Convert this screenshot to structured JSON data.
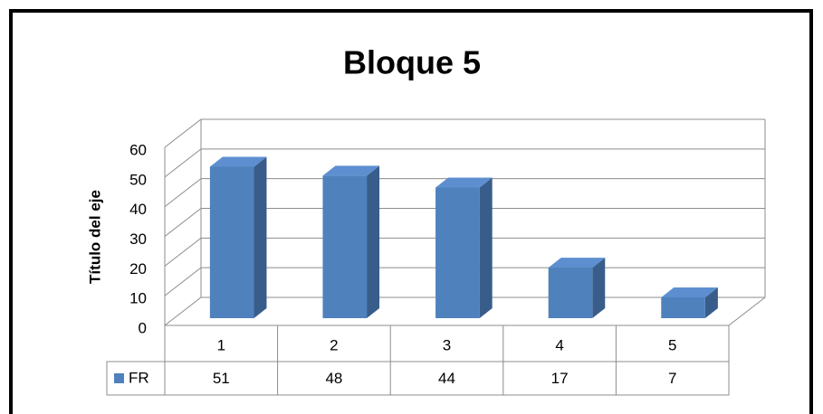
{
  "chart_data": {
    "type": "bar3d",
    "title": "Bloque 5",
    "y_axis_label": "Título del eje",
    "categories": [
      "1",
      "2",
      "3",
      "4",
      "5"
    ],
    "series": [
      {
        "name": "FR",
        "color": "#4f81bd",
        "values": [
          51,
          48,
          44,
          17,
          7
        ]
      }
    ],
    "ylim": [
      0,
      60
    ],
    "yticks": [
      0,
      10,
      20,
      30,
      40,
      50,
      60
    ],
    "grid": true,
    "data_table": true
  }
}
